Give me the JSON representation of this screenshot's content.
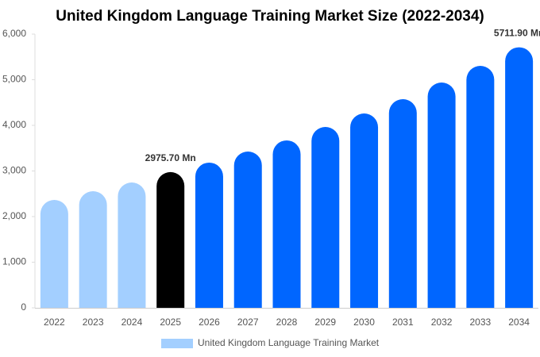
{
  "chart_data": {
    "type": "bar",
    "title": "United Kingdom Language Training Market Size (2022-2034)",
    "categories": [
      "2022",
      "2023",
      "2024",
      "2025",
      "2026",
      "2027",
      "2028",
      "2029",
      "2030",
      "2031",
      "2032",
      "2033",
      "2034"
    ],
    "series": [
      {
        "name": "United Kingdom Language Training Market",
        "color": "#a3cfff",
        "colors": [
          "#a3cfff",
          "#a3cfff",
          "#a3cfff",
          "#000000",
          "#0066ff",
          "#0066ff",
          "#0066ff",
          "#0066ff",
          "#0066ff",
          "#0066ff",
          "#0066ff",
          "#0066ff",
          "#0066ff"
        ],
        "values": [
          2365,
          2557,
          2748,
          2975.7,
          3183,
          3426,
          3670,
          3965,
          4261,
          4574,
          4939,
          5304,
          5711.9
        ],
        "value_labels": [
          null,
          null,
          null,
          "2975.70 Mn",
          null,
          null,
          null,
          null,
          null,
          null,
          null,
          null,
          "5711.90 Mn"
        ]
      }
    ],
    "ylim": [
      0,
      6000
    ],
    "yticks": [
      0,
      {
        "value": 1000,
        "label": "1,000"
      },
      {
        "value": 2000,
        "label": "2,000"
      },
      {
        "value": 3000,
        "label": "3,000"
      },
      {
        "value": 4000,
        "label": "4,000"
      },
      {
        "value": 5000,
        "label": "5,000"
      },
      {
        "value": 6000,
        "label": "6,000"
      }
    ],
    "grid": false,
    "legend": "bottom"
  }
}
